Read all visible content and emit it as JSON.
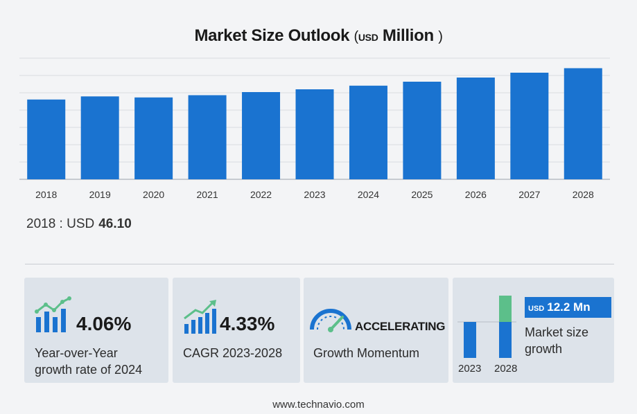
{
  "title": {
    "main": "Market Size Outlook",
    "paren_open": "(",
    "currency": "USD",
    "unit": "Million",
    "paren_close": ")"
  },
  "chart_data": {
    "type": "bar",
    "categories": [
      "2018",
      "2019",
      "2020",
      "2021",
      "2022",
      "2023",
      "2024",
      "2025",
      "2026",
      "2027",
      "2028"
    ],
    "values": [
      46.1,
      47.9,
      47.3,
      48.6,
      50.4,
      52.0,
      54.1,
      56.4,
      58.8,
      61.6,
      64.2
    ],
    "ylim": [
      0,
      70
    ],
    "grid": true,
    "bar_color": "#1a73d0"
  },
  "base_value": {
    "label": "2018 : USD",
    "value": "46.10"
  },
  "cards": {
    "yoy": {
      "value": "4.06%",
      "caption_line1": "Year-over-Year",
      "caption_line2": "growth rate of 2024"
    },
    "cagr": {
      "value": "4.33%",
      "caption": "CAGR 2023-2028"
    },
    "momentum": {
      "value": "ACCELERATING",
      "caption": "Growth Momentum"
    },
    "growth": {
      "currency": "USD",
      "value": "12.2 Mn",
      "caption_line1": "Market size",
      "caption_line2": "growth",
      "year_start": "2023",
      "year_end": "2028"
    }
  },
  "colors": {
    "accent": "#1a73d0",
    "growth_green": "#5cbf8a",
    "card_bg": "#dde3ea"
  },
  "footer": "www.technavio.com"
}
